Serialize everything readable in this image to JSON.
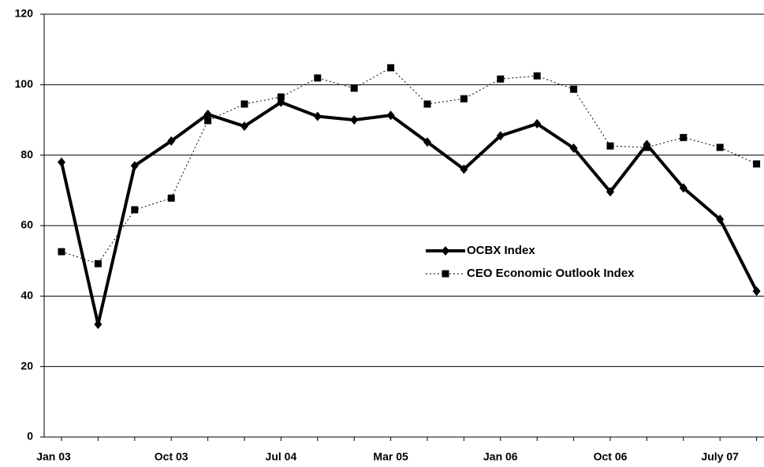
{
  "chart_data": {
    "type": "line",
    "categories": [
      "Jan 03",
      null,
      null,
      "Oct 03",
      null,
      null,
      "Jul 04",
      null,
      null,
      "Mar 05",
      null,
      null,
      "Jan 06",
      null,
      null,
      "Oct 06",
      null,
      null,
      "July 07",
      null
    ],
    "series": [
      {
        "name": "OCBX Index",
        "color": "#000000",
        "line_style": "solid",
        "marker": "diamond",
        "values": [
          78,
          32,
          77,
          84,
          91.6,
          88.2,
          95,
          91,
          90,
          91.3,
          83.7,
          76,
          85.5,
          88.9,
          82,
          69.6,
          83,
          70.7,
          61.8,
          41.4
        ]
      },
      {
        "name": "CEO Economic Outlook Index",
        "color": "#000000",
        "line_style": "dotted",
        "marker": "square",
        "values": [
          52.6,
          49.2,
          64.5,
          67.8,
          89.8,
          94.5,
          96.5,
          101.9,
          99,
          104.8,
          94.5,
          96,
          101.6,
          102.5,
          98.7,
          82.6,
          82.2,
          85,
          82.2,
          77.5
        ]
      }
    ],
    "ylim": [
      0,
      120
    ],
    "yticks": [
      0,
      20,
      40,
      60,
      80,
      100,
      120
    ],
    "grid": true,
    "legend_position": "center-right"
  }
}
